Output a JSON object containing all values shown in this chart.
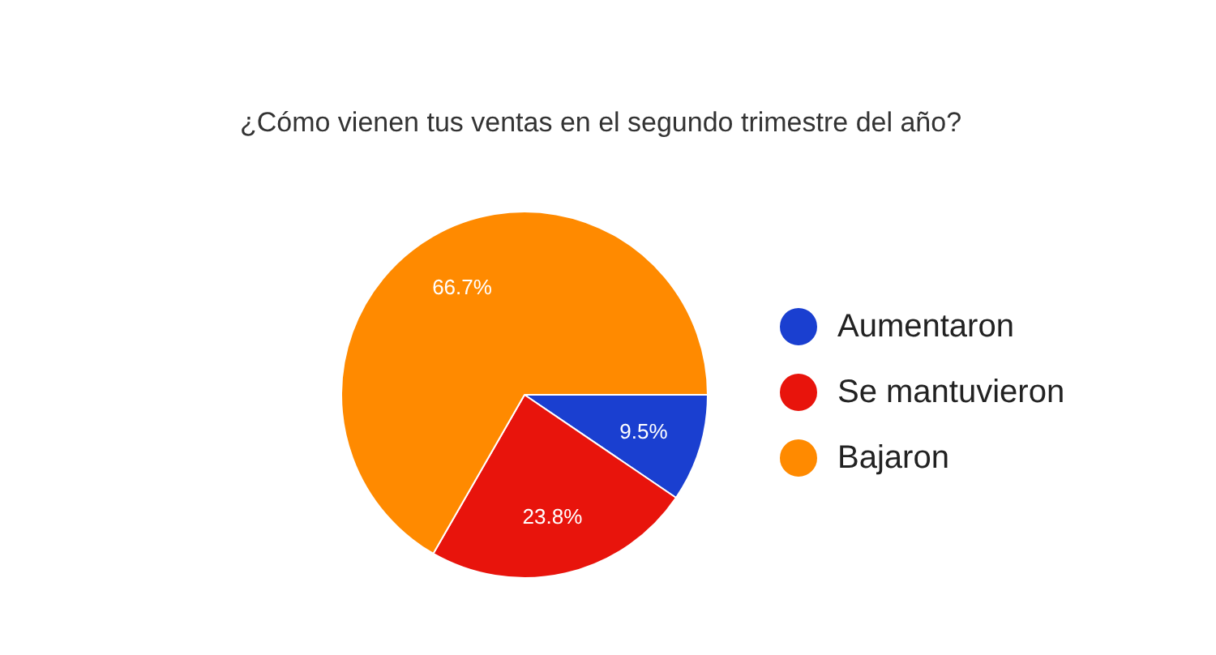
{
  "chart_data": {
    "type": "pie",
    "title": "¿Cómo vienen tus ventas en el segundo trimestre del año?",
    "categories": [
      "Aumentaron",
      "Se mantuvieron",
      "Bajaron"
    ],
    "values": [
      9.5,
      23.8,
      66.7
    ],
    "colors": [
      "#1a3fd0",
      "#e8140c",
      "#ff8a00"
    ],
    "value_labels": [
      "9.5%",
      "23.8%",
      "66.7%"
    ],
    "legend": "right"
  }
}
